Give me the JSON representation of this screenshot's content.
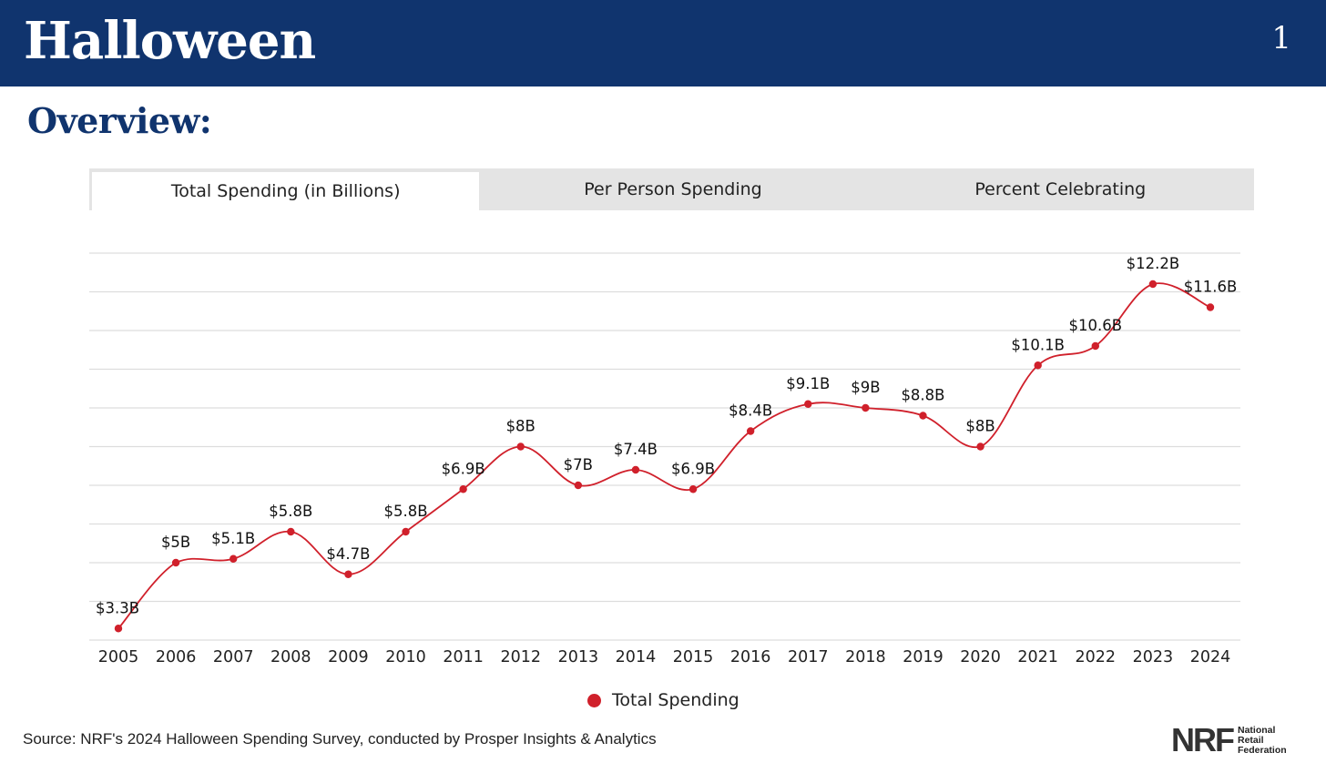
{
  "header": {
    "title": "Halloween",
    "page_number": "1"
  },
  "subtitle": "Overview:",
  "tabs": [
    {
      "label": "Total Spending (in Billions)",
      "active": true
    },
    {
      "label": "Per Person Spending",
      "active": false
    },
    {
      "label": "Percent Celebrating",
      "active": false
    }
  ],
  "chart_data": {
    "type": "line",
    "categories": [
      "2005",
      "2006",
      "2007",
      "2008",
      "2009",
      "2010",
      "2011",
      "2012",
      "2013",
      "2014",
      "2015",
      "2016",
      "2017",
      "2018",
      "2019",
      "2020",
      "2021",
      "2022",
      "2023",
      "2024"
    ],
    "series": [
      {
        "name": "Total Spending",
        "values": [
          3.3,
          5.0,
          5.1,
          5.8,
          4.7,
          5.8,
          6.9,
          8.0,
          7.0,
          7.4,
          6.9,
          8.4,
          9.1,
          9.0,
          8.8,
          8.0,
          10.1,
          10.6,
          12.2,
          11.6
        ],
        "labels": [
          "$3.3B",
          "$5B",
          "$5.1B",
          "$5.8B",
          "$4.7B",
          "$5.8B",
          "$6.9B",
          "$8B",
          "$7B",
          "$7.4B",
          "$6.9B",
          "$8.4B",
          "$9.1B",
          "$9B",
          "$8.8B",
          "$8B",
          "$10.1B",
          "$10.6B",
          "$12.2B",
          "$11.6B"
        ],
        "color": "#d0202b"
      }
    ],
    "ylim": [
      3,
      13
    ],
    "y_axis_labels_visible": false,
    "grid": true,
    "smooth": true,
    "legend": "bottom"
  },
  "source": "Source: NRF's 2024 Halloween Spending Survey, conducted by Prosper Insights & Analytics",
  "logo": {
    "mark": "NRF",
    "lines": [
      "National",
      "Retail",
      "Federation"
    ]
  },
  "colors": {
    "header_bg": "#10346e",
    "accent": "#d0202b",
    "grid": "#dddddd"
  }
}
